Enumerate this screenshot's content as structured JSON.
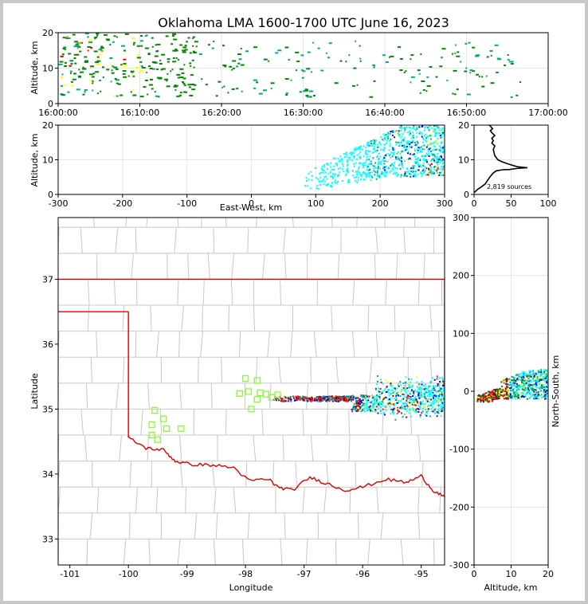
{
  "chart_data": [
    {
      "id": "time-height",
      "type": "scatter",
      "title": "Oklahoma LMA 1600-1700 UTC June 16, 2023",
      "xlabel": "",
      "ylabel": "Altitude, km",
      "xlim": [
        0,
        60
      ],
      "ylim": [
        0,
        20
      ],
      "x_tick_values": [
        0,
        10,
        20,
        30,
        40,
        50,
        60
      ],
      "x_tick_labels": [
        "16:00:00",
        "16:10:00",
        "16:20:00",
        "16:30:00",
        "16:40:00",
        "16:50:00",
        "17:00:00"
      ],
      "y_ticks": [
        0,
        10,
        20
      ],
      "series": [
        {
          "name": "sources",
          "x_units": "minutes after 16:00 UTC",
          "x_range": [
            0,
            57
          ],
          "y_range": [
            2,
            20
          ],
          "densest_x_range": [
            0,
            17
          ]
        }
      ]
    },
    {
      "id": "ew-height",
      "type": "scatter",
      "xlabel": "East-West, km",
      "ylabel": "Altitude, km",
      "xlim": [
        -300,
        300
      ],
      "ylim": [
        0,
        20
      ],
      "x_ticks": [
        -300,
        -200,
        -100,
        0,
        100,
        200,
        300
      ],
      "y_ticks": [
        0,
        10,
        20
      ],
      "series": [
        {
          "name": "sources",
          "x_range": [
            75,
            300
          ],
          "y_range": [
            1,
            20
          ],
          "densest_region": {
            "x": [
              200,
              300
            ],
            "y": [
              5,
              20
            ]
          }
        }
      ]
    },
    {
      "id": "height-histogram",
      "type": "line",
      "xlabel": "",
      "ylabel": "",
      "xlim": [
        0,
        100
      ],
      "ylim": [
        0,
        20
      ],
      "x_ticks": [
        0,
        50,
        100
      ],
      "y_ticks": [
        0,
        10,
        20
      ],
      "annotation": "2,819 sources",
      "x": [
        0,
        5,
        10,
        15,
        18,
        22,
        26,
        30,
        38,
        48,
        58,
        72,
        58,
        46,
        38,
        32,
        30,
        28,
        27,
        26,
        28,
        24,
        26,
        24,
        28,
        24,
        22,
        25,
        23,
        22,
        20
      ],
      "y": [
        0.5,
        1.5,
        2.2,
        3.0,
        4.0,
        5.2,
        6.2,
        6.8,
        7.1,
        7.2,
        7.5,
        7.7,
        8.0,
        8.8,
        9.4,
        10.0,
        10.6,
        11.2,
        12.0,
        13.0,
        14.0,
        14.8,
        15.5,
        16.2,
        17.0,
        17.8,
        18.4,
        19.0,
        19.4,
        19.8,
        20.0
      ]
    },
    {
      "id": "plan-view-map",
      "type": "scatter",
      "xlabel": "Longitude",
      "ylabel": "Latitude",
      "xlim": [
        -101.2,
        -94.6
      ],
      "ylim": [
        32.6,
        37.95
      ],
      "x_ticks": [
        -101,
        -100,
        -99,
        -98,
        -97,
        -96,
        -95
      ],
      "y_ticks": [
        33,
        34,
        35,
        36,
        37
      ],
      "series": [
        {
          "name": "sources",
          "lon_range": [
            -97.6,
            -94.6
          ],
          "lat_range": [
            34.95,
            35.55
          ]
        },
        {
          "name": "stations",
          "points": [
            [
              -99.55,
              34.98
            ],
            [
              -99.4,
              34.85
            ],
            [
              -99.6,
              34.76
            ],
            [
              -99.35,
              34.7
            ],
            [
              -99.6,
              34.6
            ],
            [
              -99.5,
              34.53
            ],
            [
              -99.1,
              34.7
            ],
            [
              -98.0,
              35.47
            ],
            [
              -97.8,
              35.44
            ],
            [
              -98.1,
              35.24
            ],
            [
              -97.95,
              35.27
            ],
            [
              -97.75,
              35.25
            ],
            [
              -97.65,
              35.23
            ],
            [
              -97.8,
              35.15
            ],
            [
              -97.55,
              35.18
            ],
            [
              -97.45,
              35.22
            ],
            [
              -97.9,
              35.0
            ]
          ]
        }
      ],
      "borders": {
        "oklahoma_north": {
          "lat": 37.0
        },
        "panhandle_south": {
          "lat": 36.5,
          "lon": [
            -101.2,
            -100.0
          ]
        },
        "texas_east_line": {
          "lon": -100.0,
          "lat": [
            34.56,
            36.5
          ]
        },
        "red_river": [
          [
            -100.0,
            34.56
          ],
          [
            -99.7,
            34.4
          ],
          [
            -99.4,
            34.37
          ],
          [
            -99.2,
            34.2
          ],
          [
            -98.95,
            34.15
          ],
          [
            -98.6,
            34.14
          ],
          [
            -98.2,
            34.1
          ],
          [
            -97.95,
            33.9
          ],
          [
            -97.6,
            33.92
          ],
          [
            -97.45,
            33.8
          ],
          [
            -97.2,
            33.75
          ],
          [
            -96.9,
            33.95
          ],
          [
            -96.6,
            33.85
          ],
          [
            -96.3,
            33.75
          ],
          [
            -96.0,
            33.8
          ],
          [
            -95.6,
            33.92
          ],
          [
            -95.25,
            33.87
          ],
          [
            -95.0,
            33.97
          ],
          [
            -94.8,
            33.75
          ],
          [
            -94.6,
            33.65
          ]
        ],
        "arkansas_line": {
          "lon": -94.6,
          "lat": [
            33.65,
            37.0
          ]
        }
      }
    },
    {
      "id": "ns-height",
      "type": "scatter",
      "xlabel": "Altitude, km",
      "ylabel": "North-South, km",
      "xlim": [
        0,
        20
      ],
      "ylim": [
        -300,
        300
      ],
      "x_ticks": [
        0,
        10,
        20
      ],
      "y_ticks": [
        -300,
        -200,
        -100,
        0,
        100,
        200,
        300
      ],
      "series": [
        {
          "name": "sources",
          "x_range": [
            0.5,
            20
          ],
          "y_range": [
            -20,
            40
          ],
          "densest_region": {
            "x": [
              1,
              9
            ],
            "y": [
              -12,
              0
            ]
          }
        }
      ]
    }
  ],
  "colors": {
    "density": [
      "#00ffff",
      "#00aa88",
      "#008800",
      "#0000ff",
      "#ffff00",
      "#ff8800",
      "#ff0000",
      "#880000"
    ],
    "border": "#dd0000",
    "counties": "#c8c8c8",
    "station": "#80ff20",
    "histogram": "#000000"
  }
}
